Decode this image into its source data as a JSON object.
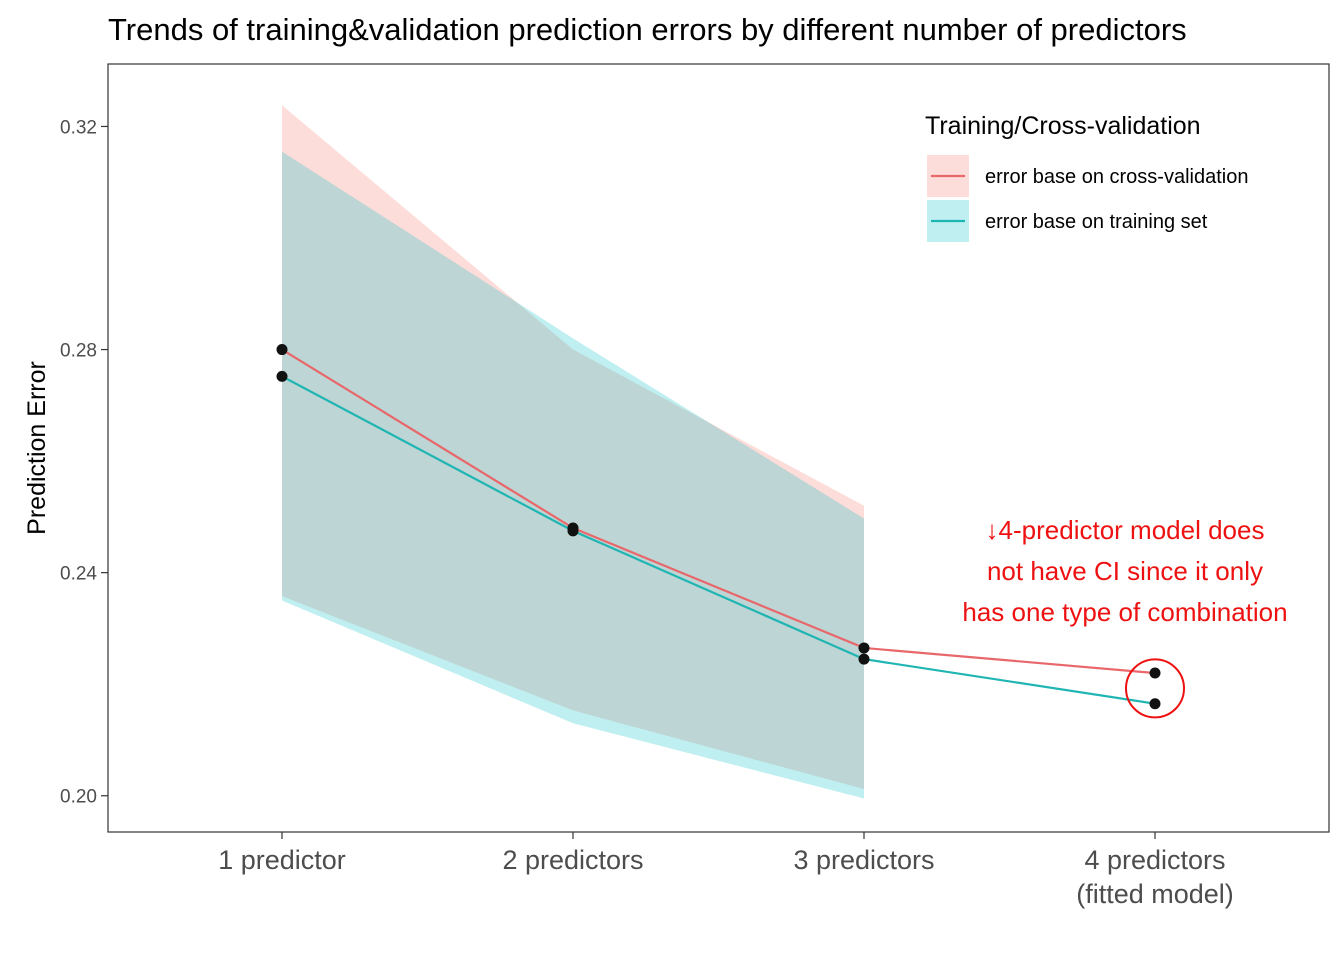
{
  "chart_data": {
    "type": "line",
    "title": "Trends of training&validation prediction errors by different number of predictors",
    "xlabel": "",
    "ylabel": "Prediction Error",
    "categories": [
      "1 predictor",
      "2 predictors",
      "3 predictors",
      [
        "4 predictors",
        "(fitted model)"
      ]
    ],
    "yticks": [
      0.2,
      0.24,
      0.28,
      0.32
    ],
    "ytick_labels": [
      "0.20",
      "0.24",
      "0.28",
      "0.32"
    ],
    "ylim": [
      0.1935,
      0.3312
    ],
    "grid": false,
    "legend": {
      "title": "Training/Cross-validation",
      "position": "top-right"
    },
    "series": [
      {
        "name": "error base on cross-validation",
        "color": "#E8676B",
        "fill": "#F8766D",
        "values": [
          0.28,
          0.248,
          0.2265,
          0.222
        ],
        "ci_lower": [
          0.2358,
          0.2153,
          0.2012,
          null
        ],
        "ci_upper": [
          0.3238,
          0.28,
          0.252,
          null
        ]
      },
      {
        "name": "error base on training set",
        "color": "#1FB5B2",
        "fill": "#00BFC4",
        "values": [
          0.2752,
          0.2475,
          0.2245,
          0.2165
        ],
        "ci_lower": [
          0.235,
          0.213,
          0.1995,
          null
        ],
        "ci_upper": [
          0.3155,
          0.282,
          0.2497,
          null
        ]
      }
    ],
    "annotation": {
      "lines": [
        "↓4-predictor model does",
        "not have CI since it only",
        "has one type of combination"
      ],
      "color": "#ee1111"
    }
  }
}
